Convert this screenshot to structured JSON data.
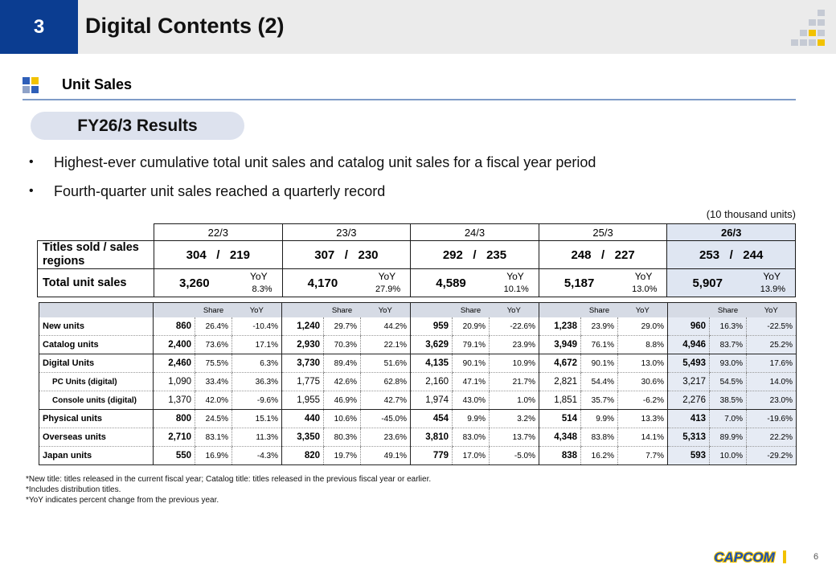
{
  "header": {
    "section_number": "3",
    "title": "Digital Contents (2)"
  },
  "subtitle": "Unit Sales",
  "pill": "FY26/3 Results",
  "bullets": [
    "Highest-ever cumulative total unit sales and catalog unit sales for a fiscal year period",
    "Fourth-quarter unit sales reached a quarterly record"
  ],
  "unit_note": "(10 thousand units)",
  "summary": {
    "periods": [
      "22/3",
      "23/3",
      "24/3",
      "25/3",
      "26/3"
    ],
    "titles_label": "Titles sold / sales regions",
    "titles": [
      {
        "titles": "304",
        "sep": "/",
        "regions": "219"
      },
      {
        "titles": "307",
        "sep": "/",
        "regions": "230"
      },
      {
        "titles": "292",
        "sep": "/",
        "regions": "235"
      },
      {
        "titles": "248",
        "sep": "/",
        "regions": "227"
      },
      {
        "titles": "253",
        "sep": "/",
        "regions": "244"
      }
    ],
    "total_label": "Total unit sales",
    "yoy_label": "YoY",
    "totals": [
      {
        "value": "3,260",
        "yoy": "8.3%"
      },
      {
        "value": "4,170",
        "yoy": "27.9%"
      },
      {
        "value": "4,589",
        "yoy": "10.1%"
      },
      {
        "value": "5,187",
        "yoy": "13.0%"
      },
      {
        "value": "5,907",
        "yoy": "13.9%"
      }
    ]
  },
  "detail": {
    "share_label": "Share",
    "yoy_label": "YoY",
    "rows": [
      {
        "label": "New units",
        "sub": false,
        "cells": [
          [
            "860",
            "26.4%",
            "-10.4%"
          ],
          [
            "1,240",
            "29.7%",
            "44.2%"
          ],
          [
            "959",
            "20.9%",
            "-22.6%"
          ],
          [
            "1,238",
            "23.9%",
            "29.0%"
          ],
          [
            "960",
            "16.3%",
            "-22.5%"
          ]
        ]
      },
      {
        "label": "Catalog units",
        "sub": false,
        "cells": [
          [
            "2,400",
            "73.6%",
            "17.1%"
          ],
          [
            "2,930",
            "70.3%",
            "22.1%"
          ],
          [
            "3,629",
            "79.1%",
            "23.9%"
          ],
          [
            "3,949",
            "76.1%",
            "8.8%"
          ],
          [
            "4,946",
            "83.7%",
            "25.2%"
          ]
        ]
      },
      {
        "label": "Digital Units",
        "sub": false,
        "cells": [
          [
            "2,460",
            "75.5%",
            "6.3%"
          ],
          [
            "3,730",
            "89.4%",
            "51.6%"
          ],
          [
            "4,135",
            "90.1%",
            "10.9%"
          ],
          [
            "4,672",
            "90.1%",
            "13.0%"
          ],
          [
            "5,493",
            "93.0%",
            "17.6%"
          ]
        ]
      },
      {
        "label": "PC Units (digital)",
        "sub": true,
        "cells": [
          [
            "1,090",
            "33.4%",
            "36.3%"
          ],
          [
            "1,775",
            "42.6%",
            "62.8%"
          ],
          [
            "2,160",
            "47.1%",
            "21.7%"
          ],
          [
            "2,821",
            "54.4%",
            "30.6%"
          ],
          [
            "3,217",
            "54.5%",
            "14.0%"
          ]
        ]
      },
      {
        "label": "Console units (digital)",
        "sub": true,
        "cells": [
          [
            "1,370",
            "42.0%",
            "-9.6%"
          ],
          [
            "1,955",
            "46.9%",
            "42.7%"
          ],
          [
            "1,974",
            "43.0%",
            "1.0%"
          ],
          [
            "1,851",
            "35.7%",
            "-6.2%"
          ],
          [
            "2,276",
            "38.5%",
            "23.0%"
          ]
        ]
      },
      {
        "label": "Physical units",
        "sub": false,
        "cells": [
          [
            "800",
            "24.5%",
            "15.1%"
          ],
          [
            "440",
            "10.6%",
            "-45.0%"
          ],
          [
            "454",
            "9.9%",
            "3.2%"
          ],
          [
            "514",
            "9.9%",
            "13.3%"
          ],
          [
            "413",
            "7.0%",
            "-19.6%"
          ]
        ]
      },
      {
        "label": "Overseas units",
        "sub": false,
        "cells": [
          [
            "2,710",
            "83.1%",
            "11.3%"
          ],
          [
            "3,350",
            "80.3%",
            "23.6%"
          ],
          [
            "3,810",
            "83.0%",
            "13.7%"
          ],
          [
            "4,348",
            "83.8%",
            "14.1%"
          ],
          [
            "5,313",
            "89.9%",
            "22.2%"
          ]
        ]
      },
      {
        "label": "Japan units",
        "sub": false,
        "cells": [
          [
            "550",
            "16.9%",
            "-4.3%"
          ],
          [
            "820",
            "19.7%",
            "49.1%"
          ],
          [
            "779",
            "17.0%",
            "-5.0%"
          ],
          [
            "838",
            "16.2%",
            "7.7%"
          ],
          [
            "593",
            "10.0%",
            "-29.2%"
          ]
        ]
      }
    ]
  },
  "footnotes": [
    "*New title: titles released in the current fiscal year; Catalog title: titles released in the previous fiscal year or earlier.",
    "*Includes distribution titles.",
    "*YoY indicates percent change from the previous year."
  ],
  "logo_text": "CAPCOM",
  "page_number": "6",
  "colors": {
    "section_blue": "#0b3d91",
    "highlight": "#dfe6f2",
    "logo_yellow": "#f2c200",
    "logo_blue": "#1a4fb5"
  }
}
